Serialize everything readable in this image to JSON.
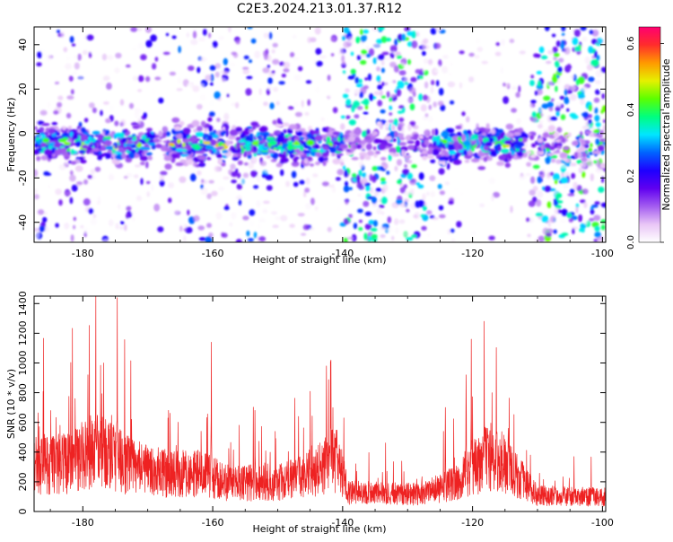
{
  "title": "C2E3.2024.213.01.37.R12",
  "chart_data": [
    {
      "type": "heatmap",
      "xlabel": "Height of straight line (km)",
      "ylabel": "Frequency (Hz)",
      "xlim": [
        -187.5,
        -99.5
      ],
      "ylim": [
        -49,
        48
      ],
      "xticks": [
        -180,
        -160,
        -140,
        -120,
        -100
      ],
      "yticks": [
        -40,
        -20,
        0,
        20,
        40
      ],
      "grid": false,
      "colorbar": {
        "label": "Normalized spectral amplitude",
        "range": [
          0.0,
          0.65
        ],
        "ticks": [
          0.0,
          0.2,
          0.4,
          0.6
        ],
        "colors": [
          "#ffffff",
          "#e9c6f6",
          "#a35cf0",
          "#6000f0",
          "#1e00ff",
          "#0064ff",
          "#00e6ff",
          "#00ff7f",
          "#5cff00",
          "#e6f000",
          "#ff9900",
          "#ff2c2c",
          "#ff0070"
        ]
      },
      "band": {
        "center_freq_hz": -5,
        "half_width_hz": 6,
        "strong_intervals_km": [
          [
            -187.5,
            -169
          ],
          [
            -167,
            -158
          ],
          [
            -157,
            -140
          ],
          [
            -126,
            -112
          ]
        ]
      },
      "background_activity": [
        {
          "x_range_km": [
            -187.5,
            -169
          ],
          "level": 0.25
        },
        {
          "x_range_km": [
            -169,
            -166
          ],
          "level": 0.15
        },
        {
          "x_range_km": [
            -166,
            -157
          ],
          "level": 0.4
        },
        {
          "x_range_km": [
            -157,
            -150
          ],
          "level": 0.45
        },
        {
          "x_range_km": [
            -150,
            -145
          ],
          "level": 0.25
        },
        {
          "x_range_km": [
            -145,
            -140
          ],
          "level": 0.12
        },
        {
          "x_range_km": [
            -140,
            -127
          ],
          "level": 0.95
        },
        {
          "x_range_km": [
            -127,
            -123
          ],
          "level": 0.45
        },
        {
          "x_range_km": [
            -123,
            -111
          ],
          "level": 0.05
        },
        {
          "x_range_km": [
            -111,
            -99.5
          ],
          "level": 1.0
        }
      ]
    },
    {
      "type": "line",
      "xlabel": "Height of straight line (km)",
      "ylabel": "SNR (10 * v/v)",
      "xlim": [
        -187.5,
        -99.5
      ],
      "ylim": [
        0,
        1450
      ],
      "xticks": [
        -180,
        -160,
        -140,
        -120,
        -100
      ],
      "yticks": [
        0,
        200,
        400,
        600,
        800,
        1000,
        1200,
        1400
      ],
      "grid": false,
      "series": [
        {
          "color": "#ee2222",
          "baseline_snr": [
            [
              -187.5,
              300
            ],
            [
              -182,
              340
            ],
            [
              -178,
              420
            ],
            [
              -172,
              300
            ],
            [
              -167,
              260
            ],
            [
              -162,
              260
            ],
            [
              -158,
              200
            ],
            [
              -150,
              200
            ],
            [
              -146,
              240
            ],
            [
              -141,
              360
            ],
            [
              -139,
              130
            ],
            [
              -128,
              120
            ],
            [
              -124,
              170
            ],
            [
              -121,
              260
            ],
            [
              -117,
              400
            ],
            [
              -113,
              240
            ],
            [
              -110,
              110
            ],
            [
              -99.5,
              100
            ]
          ],
          "peaks": [
            {
              "x": -187.2,
              "snr": 500
            },
            {
              "x": -183.5,
              "snr": 580
            },
            {
              "x": -181.2,
              "snr": 760
            },
            {
              "x": -179.2,
              "snr": 920
            },
            {
              "x": -178.0,
              "snr": 1450
            },
            {
              "x": -176.8,
              "snr": 1000
            },
            {
              "x": -174.7,
              "snr": 1440
            },
            {
              "x": -172.5,
              "snr": 620
            },
            {
              "x": -160.2,
              "snr": 1140
            },
            {
              "x": -153.5,
              "snr": 680
            },
            {
              "x": -146.8,
              "snr": 640
            },
            {
              "x": -142.5,
              "snr": 980
            },
            {
              "x": -141.8,
              "snr": 1020
            },
            {
              "x": -124.2,
              "snr": 700
            },
            {
              "x": -121.0,
              "snr": 920
            },
            {
              "x": -120.2,
              "snr": 1160
            },
            {
              "x": -118.2,
              "snr": 1280
            },
            {
              "x": -117.0,
              "snr": 800
            },
            {
              "x": -114.5,
              "snr": 560
            }
          ]
        }
      ]
    }
  ]
}
